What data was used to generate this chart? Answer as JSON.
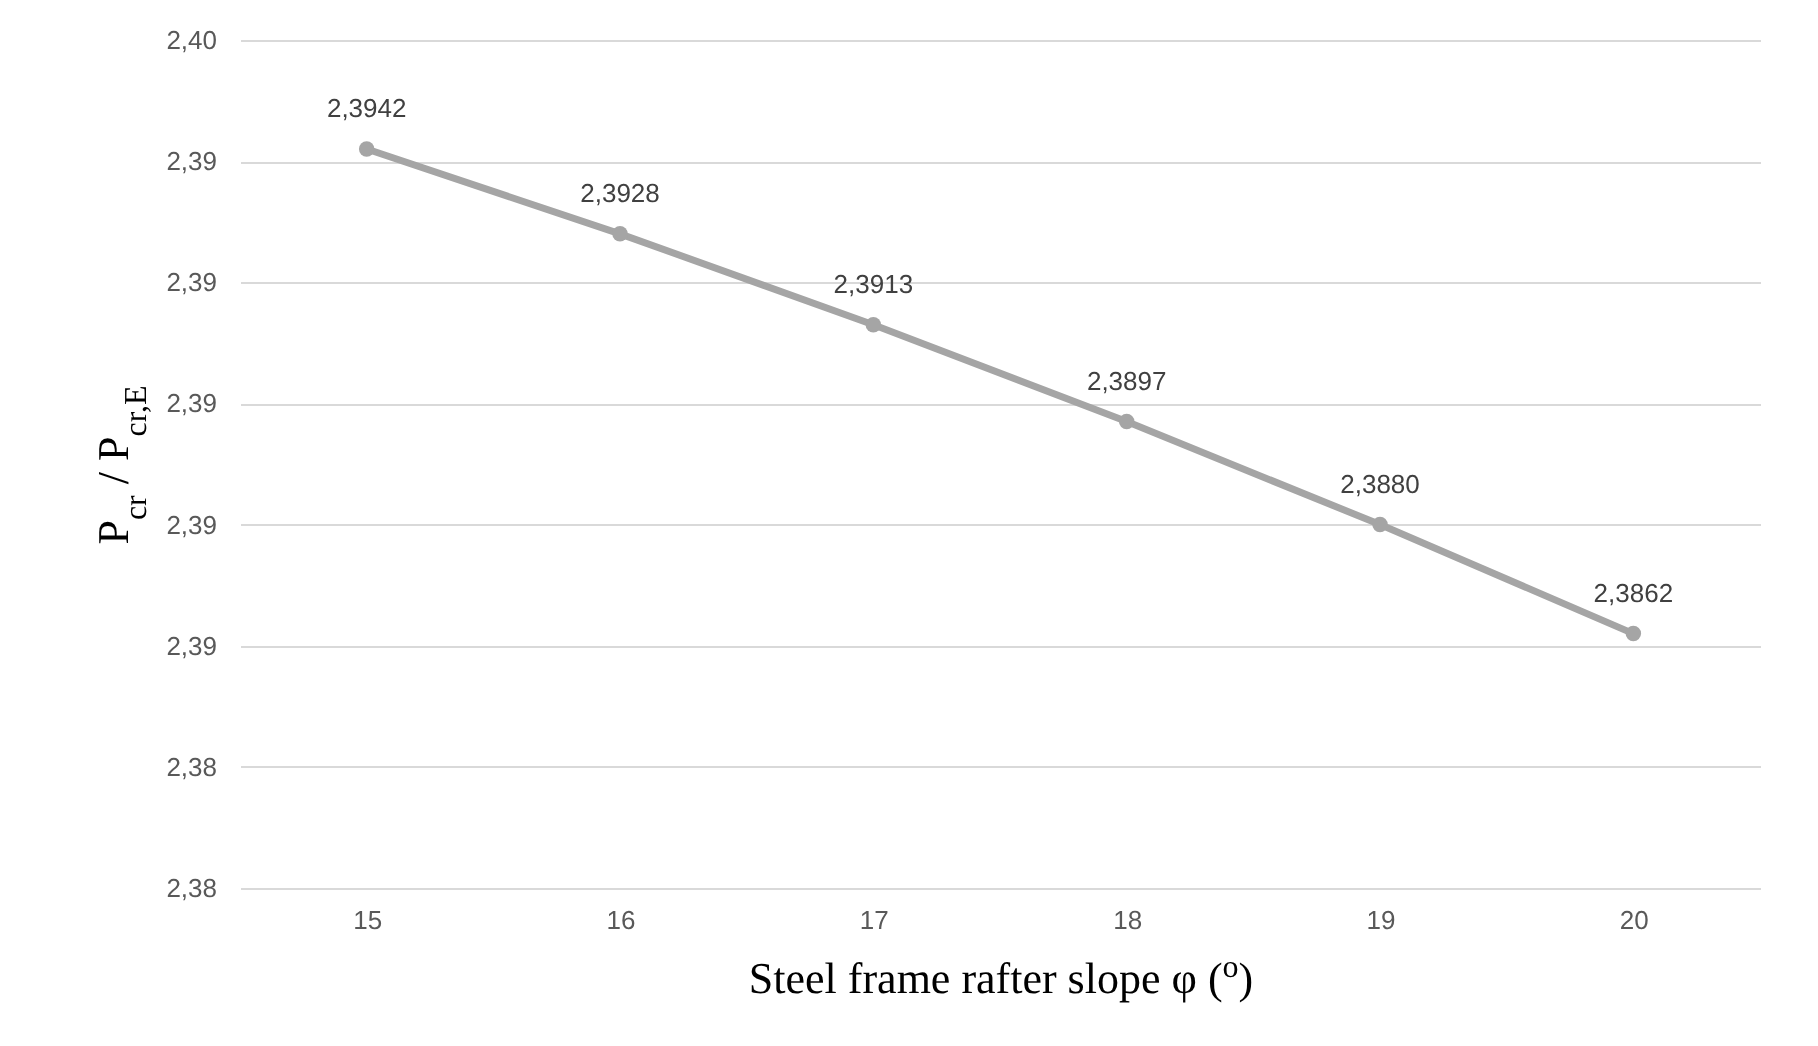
{
  "chart_data": {
    "type": "line",
    "xlabel": "Steel frame rafter slope φ ($^{o}$)",
    "ylabel": "P$_{cr}$ / P$_{cr,E}$",
    "categories": [
      "15",
      "16",
      "17",
      "18",
      "19",
      "20"
    ],
    "series": [
      {
        "color": "#a5a5a5",
        "values": [
          2.3942,
          2.3928,
          2.3913,
          2.3897,
          2.388,
          2.3862
        ],
        "value_labels": [
          "2,3942",
          "2,3928",
          "2,3913",
          "2,3897",
          "2,3880",
          "2,3862"
        ]
      }
    ],
    "ylim": [
      2.382,
      2.396
    ],
    "yticks": [
      {
        "value": 2.382,
        "label": "2,38"
      },
      {
        "value": 2.384,
        "label": "2,38"
      },
      {
        "value": 2.386,
        "label": "2,39"
      },
      {
        "value": 2.388,
        "label": "2,39"
      },
      {
        "value": 2.39,
        "label": "2,39"
      },
      {
        "value": 2.392,
        "label": "2,39"
      },
      {
        "value": 2.394,
        "label": "2,39"
      },
      {
        "value": 2.396,
        "label": "2,40"
      }
    ],
    "grid": "y",
    "marker": "circle"
  }
}
